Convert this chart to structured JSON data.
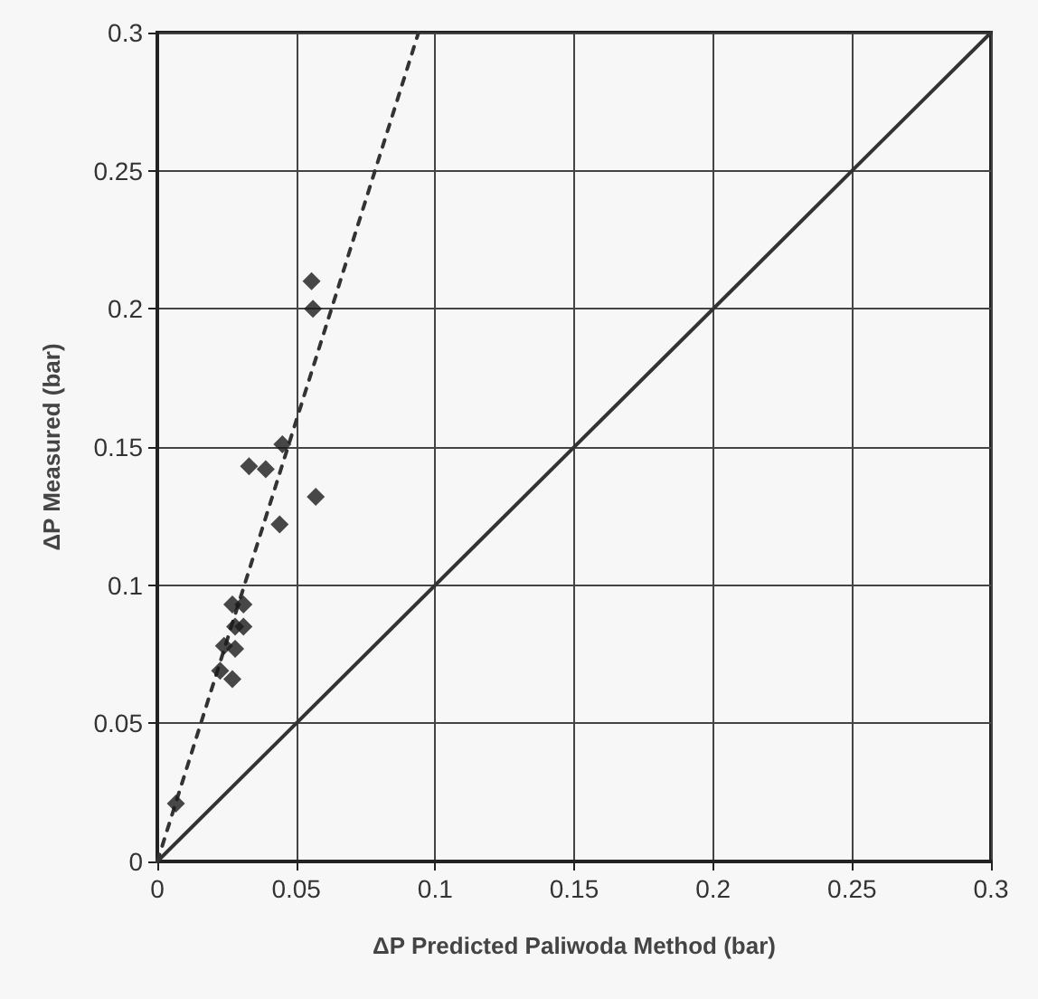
{
  "chart_data": {
    "type": "scatter",
    "xlabel": "ΔP Predicted Paliwoda Method (bar)",
    "ylabel": "ΔP Measured (bar)",
    "xlim": [
      0,
      0.3
    ],
    "ylim": [
      0,
      0.3
    ],
    "xticks": [
      0,
      0.05,
      0.1,
      0.15,
      0.2,
      0.25,
      0.3
    ],
    "yticks": [
      0,
      0.05,
      0.1,
      0.15,
      0.2,
      0.25,
      0.3
    ],
    "grid": true,
    "marker": "diamond",
    "series": [
      {
        "color": "#1a1a1a",
        "x": [
          0.0555,
          0.056,
          0.045,
          0.033,
          0.039,
          0.057,
          0.044,
          0.027,
          0.031,
          0.028,
          0.031,
          0.024,
          0.028,
          0.0226,
          0.027,
          0.0067
        ],
        "values": [
          0.21,
          0.2,
          0.151,
          0.143,
          0.142,
          0.132,
          0.122,
          0.093,
          0.093,
          0.085,
          0.085,
          0.078,
          0.077,
          0.069,
          0.066,
          0.021
        ]
      },
      {
        "type": "line",
        "color": "#333333",
        "line_style": "dashed",
        "marker": "none",
        "x": [
          0,
          0.094
        ],
        "values": [
          0,
          0.3
        ]
      },
      {
        "type": "line",
        "color": "#333333",
        "line_style": "solid",
        "marker": "none",
        "x": [
          0,
          0.3
        ],
        "values": [
          0,
          0.3
        ]
      }
    ]
  }
}
